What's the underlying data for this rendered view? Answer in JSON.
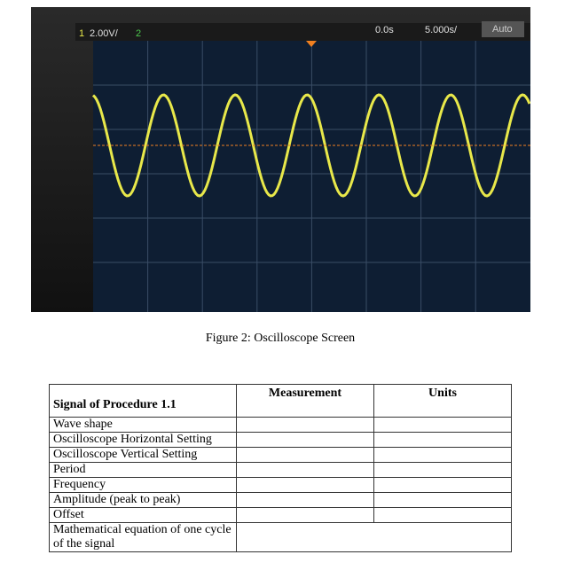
{
  "scope": {
    "channel1": "1",
    "vertical_scale": "2.00V/",
    "channel2": "2",
    "time_offset": "0.0s",
    "time_scale": "5.000s/",
    "trigger_mode": "Auto"
  },
  "caption": "Figure 2: Oscilloscope Screen",
  "table": {
    "header": [
      "Signal of Procedure 1.1",
      "Measurement",
      "Units"
    ],
    "rows": [
      "Wave shape",
      "Oscilloscope Horizontal Setting",
      "Oscilloscope Vertical Setting",
      "Period",
      "Frequency",
      "Amplitude (peak to peak)",
      "Offset",
      "Mathematical equation of one cycle of the signal"
    ]
  }
}
